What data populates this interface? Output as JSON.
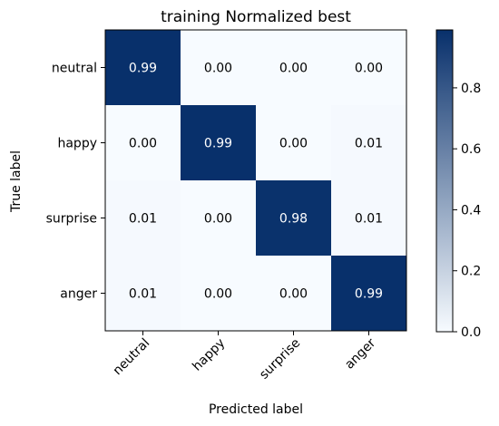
{
  "chart_data": {
    "type": "heatmap",
    "title": "training Normalized best",
    "xlabel": "Predicted label",
    "ylabel": "True label",
    "x_categories": [
      "neutral",
      "happy",
      "surprise",
      "anger"
    ],
    "y_categories": [
      "neutral",
      "happy",
      "surprise",
      "anger"
    ],
    "values": [
      [
        0.99,
        0.0,
        0.0,
        0.0
      ],
      [
        0.0,
        0.99,
        0.0,
        0.01
      ],
      [
        0.01,
        0.0,
        0.98,
        0.01
      ],
      [
        0.01,
        0.0,
        0.0,
        0.99
      ]
    ],
    "cell_labels": [
      [
        "0.99",
        "0.00",
        "0.00",
        "0.00"
      ],
      [
        "0.00",
        "0.99",
        "0.00",
        "0.01"
      ],
      [
        "0.01",
        "0.00",
        "0.98",
        "0.01"
      ],
      [
        "0.01",
        "0.00",
        "0.00",
        "0.99"
      ]
    ],
    "colormap": "Blues",
    "colormap_low": "#f7fbff",
    "colormap_high": "#08306b",
    "colorbar": {
      "range": [
        0,
        0.99
      ],
      "ticks": [
        0.0,
        0.2,
        0.4,
        0.6,
        0.8
      ],
      "tick_labels": [
        "0.0",
        "0.2",
        "0.4",
        "0.6",
        "0.8"
      ]
    },
    "grid": false
  }
}
